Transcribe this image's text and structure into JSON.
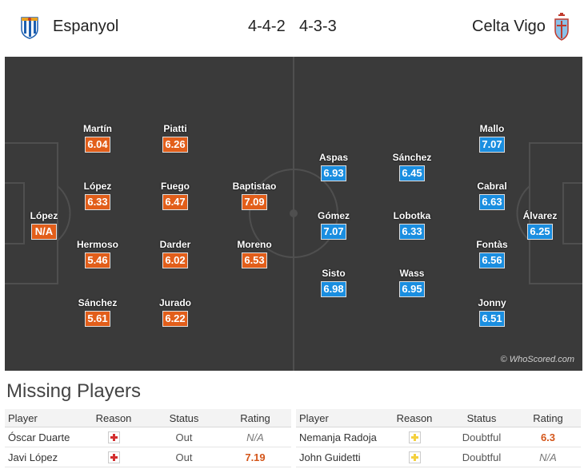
{
  "header": {
    "home_team": "Espanyol",
    "away_team": "Celta Vigo",
    "home_formation": "4-4-2",
    "away_formation": "4-3-3",
    "home_crest_icon": "espanyol-crest-icon",
    "away_crest_icon": "celta-crest-icon"
  },
  "colors": {
    "home_rating_bg": "#e25e1a",
    "away_rating_bg": "#1a8ee0",
    "pitch_bg": "#3a3a3a",
    "injury_cross": "#d32f2f",
    "doubtful_cross": "#f4d03f"
  },
  "pitch": {
    "copyright": "© WhoScored.com",
    "home_players": [
      {
        "name": "López",
        "rating": "N/A"
      },
      {
        "name": "Martín",
        "rating": "6.04"
      },
      {
        "name": "López",
        "rating": "6.33"
      },
      {
        "name": "Hermoso",
        "rating": "5.46"
      },
      {
        "name": "Sánchez",
        "rating": "5.61"
      },
      {
        "name": "Piatti",
        "rating": "6.26"
      },
      {
        "name": "Fuego",
        "rating": "6.47"
      },
      {
        "name": "Darder",
        "rating": "6.02"
      },
      {
        "name": "Jurado",
        "rating": "6.22"
      },
      {
        "name": "Baptistao",
        "rating": "7.09"
      },
      {
        "name": "Moreno",
        "rating": "6.53"
      }
    ],
    "away_players": [
      {
        "name": "Aspas",
        "rating": "6.93"
      },
      {
        "name": "Gómez",
        "rating": "7.07"
      },
      {
        "name": "Sisto",
        "rating": "6.98"
      },
      {
        "name": "Sánchez",
        "rating": "6.45"
      },
      {
        "name": "Lobotka",
        "rating": "6.33"
      },
      {
        "name": "Wass",
        "rating": "6.95"
      },
      {
        "name": "Mallo",
        "rating": "7.07"
      },
      {
        "name": "Cabral",
        "rating": "6.63"
      },
      {
        "name": "Fontàs",
        "rating": "6.56"
      },
      {
        "name": "Jonny",
        "rating": "6.51"
      },
      {
        "name": "Álvarez",
        "rating": "6.25"
      }
    ]
  },
  "missing": {
    "title": "Missing Players",
    "columns": [
      "Player",
      "Reason",
      "Status",
      "Rating"
    ],
    "home": [
      {
        "player": "Óscar Duarte",
        "reason_icon": "injury-icon",
        "status": "Out",
        "rating": "N/A"
      },
      {
        "player": "Javi López",
        "reason_icon": "injury-icon",
        "status": "Out",
        "rating": "7.19"
      }
    ],
    "away": [
      {
        "player": "Nemanja Radoja",
        "reason_icon": "doubtful-icon",
        "status": "Doubtful",
        "rating": "6.3"
      },
      {
        "player": "John Guidetti",
        "reason_icon": "doubtful-icon",
        "status": "Doubtful",
        "rating": "N/A"
      }
    ]
  }
}
